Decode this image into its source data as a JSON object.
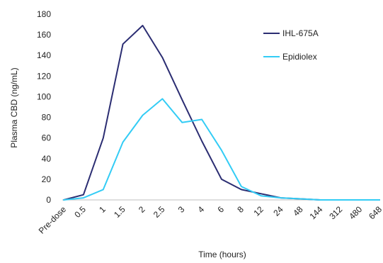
{
  "chart_data": {
    "type": "line",
    "xlabel": "Time (hours)",
    "ylabel": "Plasma CBD (ng/mL)",
    "categories": [
      "Pre-dose",
      "0.5",
      "1",
      "1.5",
      "2",
      "2.5",
      "3",
      "4",
      "6",
      "8",
      "12",
      "24",
      "48",
      "144",
      "312",
      "480",
      "648"
    ],
    "ylim": [
      0,
      180
    ],
    "yticks": [
      "0",
      "20",
      "40",
      "60",
      "80",
      "100",
      "120",
      "140",
      "160",
      "180"
    ],
    "grid": false,
    "legend_position": "top-right",
    "series": [
      {
        "name": "IHL-675A",
        "color": "#2b2d72",
        "values": [
          0,
          5,
          60,
          151,
          169,
          138,
          97,
          57,
          20,
          10,
          6,
          2,
          1,
          0,
          0,
          0,
          0
        ]
      },
      {
        "name": "Epidiolex",
        "color": "#33ccf5",
        "values": [
          0,
          2,
          10,
          56,
          82,
          98,
          75,
          78,
          48,
          13,
          4,
          2,
          1,
          0,
          0,
          0,
          0
        ]
      }
    ]
  }
}
